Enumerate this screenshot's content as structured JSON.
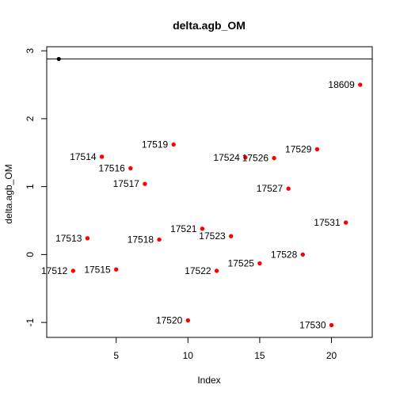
{
  "chart_data": {
    "type": "scatter",
    "title": "delta.agb_OM",
    "xlabel": "Index",
    "ylabel": "delta.agb_OM",
    "xlim": [
      0.16,
      22.84
    ],
    "ylim": [
      -1.22,
      3.06
    ],
    "x_ticks": [
      5,
      10,
      15,
      20
    ],
    "y_ticks": [
      -1,
      0,
      1,
      2,
      3
    ],
    "grid": false,
    "reference_line": {
      "y": 2.88
    },
    "reference_point": {
      "x": 1,
      "y": 2.88,
      "color": "#000000"
    },
    "point_color": "#ff0000",
    "points": [
      {
        "x": 2,
        "y": -0.24,
        "label": "17512"
      },
      {
        "x": 3,
        "y": 0.24,
        "label": "17513"
      },
      {
        "x": 4,
        "y": 1.44,
        "label": "17514"
      },
      {
        "x": 5,
        "y": -0.22,
        "label": "17515"
      },
      {
        "x": 6,
        "y": 1.27,
        "label": "17516"
      },
      {
        "x": 7,
        "y": 1.04,
        "label": "17517"
      },
      {
        "x": 8,
        "y": 0.22,
        "label": "17518"
      },
      {
        "x": 9,
        "y": 1.62,
        "label": "17519"
      },
      {
        "x": 10,
        "y": -0.97,
        "label": "17520"
      },
      {
        "x": 11,
        "y": 0.38,
        "label": "17521"
      },
      {
        "x": 12,
        "y": -0.24,
        "label": "17522"
      },
      {
        "x": 13,
        "y": 0.27,
        "label": "17523"
      },
      {
        "x": 14,
        "y": 1.43,
        "label": "17524"
      },
      {
        "x": 15,
        "y": -0.13,
        "label": "17525"
      },
      {
        "x": 16,
        "y": 1.42,
        "label": "17526"
      },
      {
        "x": 17,
        "y": 0.97,
        "label": "17527"
      },
      {
        "x": 18,
        "y": 0.0,
        "label": "17528"
      },
      {
        "x": 19,
        "y": 1.55,
        "label": "17529"
      },
      {
        "x": 20,
        "y": -1.04,
        "label": "17530"
      },
      {
        "x": 21,
        "y": 0.47,
        "label": "17531"
      },
      {
        "x": 22,
        "y": 2.5,
        "label": "18609"
      }
    ]
  }
}
